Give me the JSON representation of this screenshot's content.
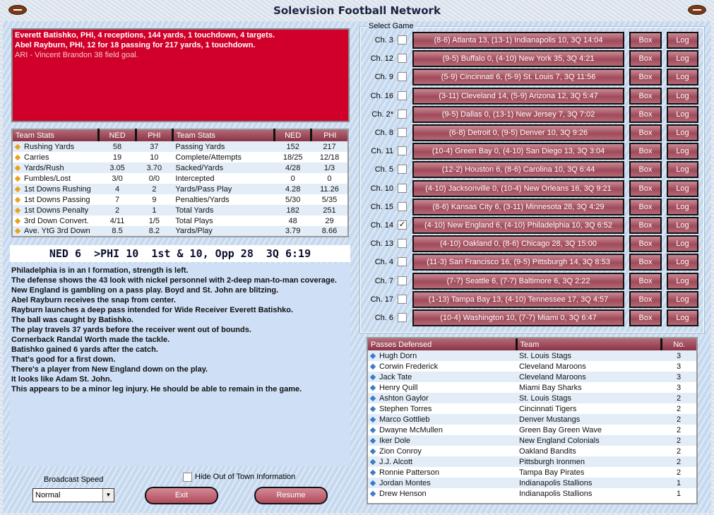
{
  "title": "Solevision Football Network",
  "headlines": [
    {
      "text": "Everett Batishko, PHI, 4 receptions, 144 yards, 1 touchdown, 4 targets.",
      "bold": true
    },
    {
      "text": "Abel Rayburn, PHI, 12 for 18 passing for 217 yards, 1 touchdown.",
      "bold": true
    },
    {
      "text": "ARI - Vincent Brandon 38 field goal.",
      "bold": false
    }
  ],
  "stats": {
    "headers": [
      "Team Stats",
      "NED",
      "PHI",
      "Team Stats",
      "NED",
      "PHI"
    ],
    "rows": [
      [
        "Rushing Yards",
        "58",
        "37",
        "Passing Yards",
        "152",
        "217"
      ],
      [
        "Carries",
        "19",
        "10",
        "Complete/Attempts",
        "18/25",
        "12/18"
      ],
      [
        "Yards/Rush",
        "3.05",
        "3.70",
        "Sacked/Yards",
        "4/28",
        "1/3"
      ],
      [
        "Fumbles/Lost",
        "3/0",
        "0/0",
        "Intercepted",
        "0",
        "0"
      ],
      [
        "1st Downs Rushing",
        "4",
        "2",
        "Yards/Pass Play",
        "4.28",
        "11.26"
      ],
      [
        "1st Downs Passing",
        "7",
        "9",
        "Penalties/Yards",
        "5/30",
        "5/35"
      ],
      [
        "1st Downs Penalty",
        "2",
        "1",
        "Total Yards",
        "182",
        "251"
      ],
      [
        "3rd Down Convert.",
        "4/11",
        "1/5",
        "Total Plays",
        "48",
        "29"
      ],
      [
        "Ave. YtG 3rd Down",
        "8.5",
        "8.2",
        "Yards/Play",
        "3.79",
        "8.66"
      ]
    ]
  },
  "scoreboard": "NED 6  >PHI 10  1st & 10, Opp 28  3Q 6:19",
  "play_by_play": [
    "Philadelphia is in an I formation, strength is left.",
    "The defense shows the 43 look with nickel personnel with 2-deep man-to-man coverage.",
    "New England is gambling on a pass play. Boyd and St. John are blitzing.",
    "Abel Rayburn receives the snap from center.",
    "Rayburn launches a deep pass intended for Wide Receiver Everett Batishko.",
    "The ball was caught by Batishko.",
    "The play travels 37 yards before the receiver went out of bounds.",
    "Cornerback Randal Worth made the tackle.",
    "Batishko gained 6 yards after the catch.",
    "That's good for a first down.",
    "There's a player from New England down on the play.",
    "It looks like Adam St. John.",
    " This appears to be a minor leg injury. He should be able to remain in the game."
  ],
  "select_game": {
    "label": "Select Game",
    "box_label": "Box",
    "log_label": "Log",
    "games": [
      {
        "channel": "Ch. 3",
        "checked": false,
        "text": "(8-6) Atlanta 13, (13-1) Indianapolis 10, 3Q 14:04"
      },
      {
        "channel": "Ch. 12",
        "checked": false,
        "text": "(9-5) Buffalo 0, (4-10) New York 35, 3Q 4:21"
      },
      {
        "channel": "Ch. 9",
        "checked": false,
        "text": "(5-9) Cincinnati 6, (5-9) St. Louis 7, 3Q 11:56"
      },
      {
        "channel": "Ch. 16",
        "checked": false,
        "text": "(3-11) Cleveland 14, (5-9) Arizona 12, 3Q 5:47"
      },
      {
        "channel": "Ch. 2*",
        "checked": false,
        "text": "(9-5) Dallas 0, (13-1) New Jersey 7, 3Q 7:02"
      },
      {
        "channel": "Ch. 8",
        "checked": false,
        "text": "(6-8) Detroit 0, (9-5) Denver 10, 3Q 9:26"
      },
      {
        "channel": "Ch. 11",
        "checked": false,
        "text": "(10-4) Green Bay 0, (4-10) San Diego 13, 3Q 3:04"
      },
      {
        "channel": "Ch. 5",
        "checked": false,
        "text": "(12-2) Houston 6, (8-6) Carolina 10, 3Q 6:44"
      },
      {
        "channel": "Ch. 10",
        "checked": false,
        "text": "(4-10) Jacksonville 0, (10-4) New Orleans 16, 3Q 9:21"
      },
      {
        "channel": "Ch. 15",
        "checked": false,
        "text": "(8-6) Kansas City 6, (3-11) Minnesota 28, 3Q 4:29"
      },
      {
        "channel": "Ch. 14",
        "checked": true,
        "text": "(4-10) New England 6, (4-10) Philadelphia 10, 3Q 6:52"
      },
      {
        "channel": "Ch. 13",
        "checked": false,
        "text": "(4-10) Oakland 0, (8-6) Chicago 28, 3Q 15:00"
      },
      {
        "channel": "Ch. 4",
        "checked": false,
        "text": "(11-3) San Francisco 16, (9-5) Pittsburgh 14, 3Q 8:53"
      },
      {
        "channel": "Ch. 7",
        "checked": false,
        "text": "(7-7) Seattle 6, (7-7) Baltimore 6, 3Q 2:22"
      },
      {
        "channel": "Ch. 17",
        "checked": false,
        "text": "(1-13) Tampa Bay 13, (4-10) Tennessee 17, 3Q 4:57"
      },
      {
        "channel": "Ch. 6",
        "checked": false,
        "text": "(10-4) Washington 10, (7-7) Miami 0, 3Q 6:47"
      }
    ]
  },
  "leaders": {
    "headers": [
      "Passes Defensed",
      "Team",
      "No."
    ],
    "rows": [
      [
        "Hugh Dorn",
        "St. Louis Stags",
        "3"
      ],
      [
        "Corwin Frederick",
        "Cleveland Maroons",
        "3"
      ],
      [
        "Jack Tate",
        "Cleveland Maroons",
        "3"
      ],
      [
        "Henry Quill",
        "Miami Bay Sharks",
        "3"
      ],
      [
        "Ashton Gaylor",
        "St. Louis Stags",
        "2"
      ],
      [
        "Stephen Torres",
        "Cincinnati Tigers",
        "2"
      ],
      [
        "Marco Gottlieb",
        "Denver Mustangs",
        "2"
      ],
      [
        "Dwayne McMullen",
        "Green Bay Green Wave",
        "2"
      ],
      [
        "Iker Dole",
        "New England Colonials",
        "2"
      ],
      [
        "Zion Conroy",
        "Oakland Bandits",
        "2"
      ],
      [
        "J.J. Alcott",
        "Pittsburgh Ironmen",
        "2"
      ],
      [
        "Ronnie Patterson",
        "Tampa Bay Pirates",
        "2"
      ],
      [
        "Jordan Montes",
        "Indianapolis Stallions",
        "1"
      ],
      [
        "Drew Henson",
        "Indianapolis Stallions",
        "1"
      ]
    ]
  },
  "controls": {
    "broadcast_speed_label": "Broadcast Speed",
    "broadcast_speed_value": "Normal",
    "hide_label": "Hide Out of Town Information",
    "hide_checked": false,
    "exit_label": "Exit",
    "resume_label": "Resume"
  },
  "colors": {
    "headline_bg": "#d0002a",
    "button": "#a04a5a",
    "header": "#8a3444"
  }
}
